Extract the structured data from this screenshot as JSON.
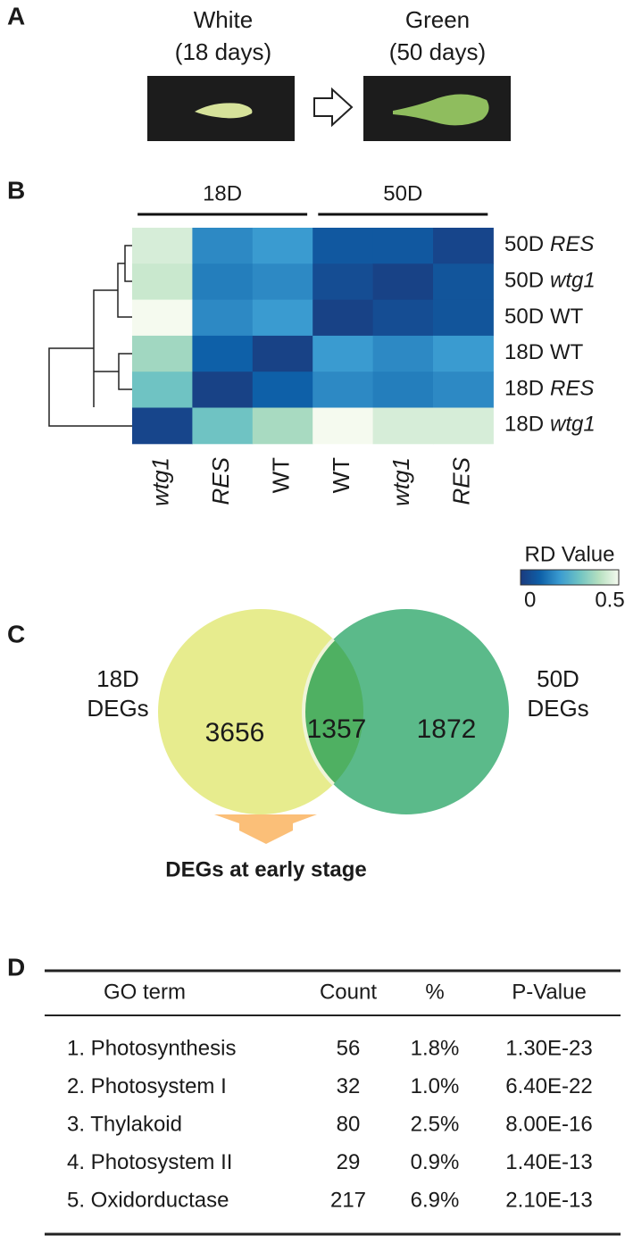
{
  "panels": {
    "a": "A",
    "b": "B",
    "c": "C",
    "d": "D"
  },
  "leaves": {
    "left_title": "White",
    "left_subtitle": "(18 days)",
    "right_title": "Green",
    "right_subtitle": "(50 days)"
  },
  "heatmap": {
    "column_groups": [
      "18D",
      "50D"
    ],
    "columns": [
      {
        "genotype": "wtg1",
        "italic": true
      },
      {
        "genotype": "RES",
        "italic": true
      },
      {
        "genotype": "WT",
        "italic": false
      },
      {
        "genotype": "WT",
        "italic": false
      },
      {
        "genotype": "wtg1",
        "italic": true
      },
      {
        "genotype": "RES",
        "italic": true
      }
    ],
    "rows": [
      {
        "stage": "50D",
        "genotype": "RES",
        "italic": true
      },
      {
        "stage": "50D",
        "genotype": "wtg1",
        "italic": true
      },
      {
        "stage": "50D",
        "genotype": "WT",
        "italic": false
      },
      {
        "stage": "18D",
        "genotype": "WT",
        "italic": false
      },
      {
        "stage": "18D",
        "genotype": "RES",
        "italic": true
      },
      {
        "stage": "18D",
        "genotype": "wtg1",
        "italic": true
      }
    ],
    "values": [
      [
        0.45,
        0.17,
        0.2,
        0.08,
        0.08,
        0.03
      ],
      [
        0.43,
        0.15,
        0.17,
        0.05,
        0.02,
        0.07
      ],
      [
        0.5,
        0.17,
        0.2,
        0.02,
        0.05,
        0.07
      ],
      [
        0.37,
        0.1,
        0.02,
        0.2,
        0.17,
        0.2
      ],
      [
        0.3,
        0.02,
        0.1,
        0.17,
        0.15,
        0.17
      ],
      [
        0.03,
        0.3,
        0.38,
        0.5,
        0.45,
        0.45
      ]
    ],
    "clim": [
      0,
      0.5
    ],
    "colorbar_label": "RD Value",
    "colorbar_ticks": [
      0,
      0.5
    ]
  },
  "venn": {
    "left_label": [
      "18D",
      "DEGs"
    ],
    "right_label": [
      "50D",
      "DEGs"
    ],
    "left_only": "3656",
    "overlap": "1357",
    "right_only": "1872",
    "arrow_label": "DEGs at early stage"
  },
  "table": {
    "header": [
      "GO term",
      "Count",
      "%",
      "P-Value"
    ],
    "rows": [
      [
        "1. Photosynthesis",
        "56",
        "1.8%",
        "1.30E-23"
      ],
      [
        "2. Photosystem I",
        "32",
        "1.0%",
        "6.40E-22"
      ],
      [
        "3. Thylakoid",
        "80",
        "2.5%",
        "8.00E-16"
      ],
      [
        "4. Photosystem II",
        "29",
        "0.9%",
        "1.40E-13"
      ],
      [
        "5. Oxidorductase",
        "217",
        "6.9%",
        "2.10E-13"
      ]
    ]
  }
}
